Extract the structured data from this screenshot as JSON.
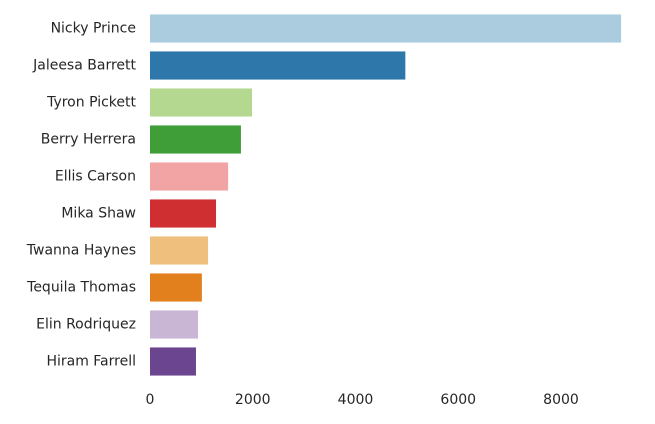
{
  "chart_data": {
    "type": "barh",
    "categories": [
      "Nicky Prince",
      "Jaleesa Barrett",
      "Tyron Pickett",
      "Berry Herrera",
      "Ellis Carson",
      "Mika Shaw",
      "Twanna Haynes",
      "Tequila Thomas",
      "Elin Rodriquez",
      "Hiram Farrell"
    ],
    "values": [
      9170,
      4970,
      1985,
      1770,
      1520,
      1285,
      1130,
      1010,
      935,
      895
    ],
    "colors": [
      "#abcbdf",
      "#2e77ab",
      "#b4d88f",
      "#3f9e37",
      "#f1a4a3",
      "#cf2f31",
      "#eebf7d",
      "#e3801e",
      "#c9b6d5",
      "#6c4591"
    ],
    "xlim": [
      0,
      9400
    ],
    "xticks": [
      0,
      2000,
      4000,
      6000,
      8000
    ],
    "grid": false
  }
}
